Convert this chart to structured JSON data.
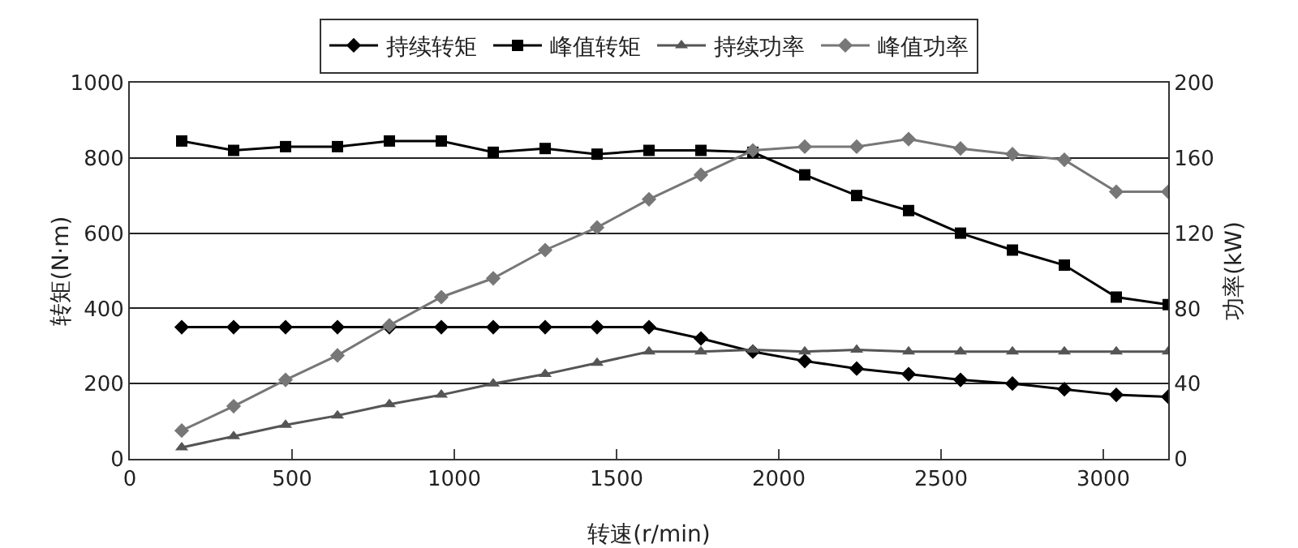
{
  "chart_data": {
    "type": "line",
    "xlabel": "转速(r/min)",
    "ylabel": "转矩(N·m)",
    "y2label": "功率(kW)",
    "x": [
      160,
      320,
      480,
      640,
      800,
      960,
      1120,
      1280,
      1440,
      1600,
      1760,
      1920,
      2080,
      2240,
      2400,
      2560,
      2720,
      2880,
      3040,
      3200
    ],
    "series": [
      {
        "name": "持续转矩",
        "color": "#000000",
        "marker": "diamond",
        "values": [
          350,
          350,
          350,
          350,
          350,
          350,
          350,
          350,
          350,
          350,
          320,
          285,
          260,
          240,
          225,
          210,
          200,
          185,
          170,
          165
        ]
      },
      {
        "name": "峰值转矩",
        "color": "#000000",
        "marker": "square",
        "values": [
          845,
          820,
          830,
          830,
          845,
          845,
          815,
          825,
          810,
          820,
          820,
          815,
          755,
          700,
          660,
          600,
          555,
          515,
          430,
          410
        ]
      },
      {
        "name": "持续功率",
        "color": "#555555",
        "marker": "triangle",
        "axis": "y2",
        "values": [
          6,
          12,
          18,
          23,
          29,
          34,
          40,
          45,
          51,
          57,
          57,
          58,
          57,
          58,
          57,
          57,
          57,
          57,
          57,
          57
        ]
      },
      {
        "name": "峰值功率",
        "color": "#777777",
        "marker": "diamond",
        "axis": "y2",
        "values": [
          15,
          28,
          42,
          55,
          71,
          86,
          96,
          111,
          123,
          138,
          151,
          164,
          166,
          166,
          170,
          165,
          162,
          159,
          142,
          142
        ]
      }
    ],
    "xlim": [
      0,
      3200
    ],
    "xticks": [
      0,
      500,
      1000,
      1500,
      2000,
      2500,
      3000
    ],
    "ylim": [
      0,
      1000
    ],
    "yticks": [
      0,
      200,
      400,
      600,
      800,
      1000
    ],
    "y2lim": [
      0,
      200
    ],
    "y2ticks": [
      0,
      40,
      80,
      120,
      160,
      200
    ],
    "grid": "y",
    "legend": "top",
    "line_style": "solid"
  }
}
